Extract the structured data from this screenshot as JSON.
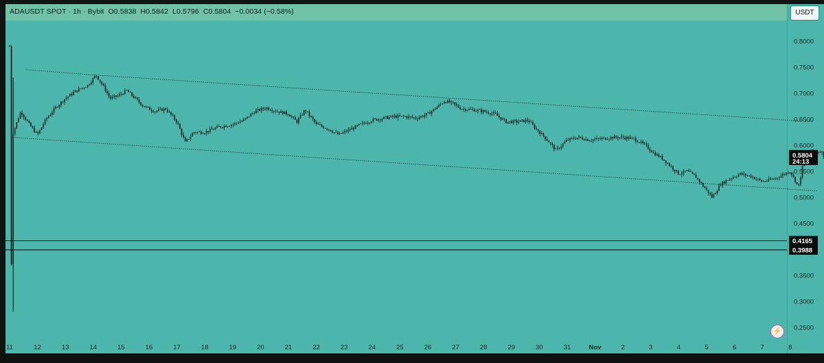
{
  "legend": {
    "symbol": "ADAUSDT SPOT",
    "sep1": "·",
    "interval": "1h",
    "sep2": "·",
    "exchange": "Bybit",
    "open": "O0.5838",
    "high": "H0.5842",
    "low": "L0.5796",
    "close": "C0.5804",
    "change": "−0.0034 (−0.58%)"
  },
  "currency_button": "USDT",
  "price_tag": {
    "price": "0.5804",
    "countdown": "24:13"
  },
  "level_tags": [
    "0.4165",
    "0.3988"
  ],
  "icons": {
    "lightning": "lightning-icon"
  },
  "colors": {
    "background": "#4db6ac",
    "candle": "#1b1f1e",
    "line": "#000000"
  },
  "chart_data": {
    "type": "candlestick",
    "yaxis_ticks": [
      "0.8000",
      "0.7500",
      "0.7000",
      "0.6500",
      "0.6000",
      "0.5500",
      "0.5000",
      "0.4500",
      "0.4000",
      "0.3500",
      "0.3000",
      "0.2500"
    ],
    "ylim": [
      0.235,
      0.82
    ],
    "xaxis_ticks": [
      "11",
      "12",
      "13",
      "14",
      "15",
      "16",
      "17",
      "18",
      "19",
      "20",
      "21",
      "22",
      "23",
      "24",
      "25",
      "26",
      "27",
      "28",
      "29",
      "30",
      "31",
      "Nov",
      "2",
      "3",
      "4",
      "5",
      "6",
      "7",
      "8"
    ],
    "price_path": [
      [
        0,
        0.79
      ],
      [
        0.05,
        0.28
      ],
      [
        0.1,
        0.62
      ],
      [
        0.4,
        0.665
      ],
      [
        0.7,
        0.64
      ],
      [
        1.0,
        0.62
      ],
      [
        1.3,
        0.65
      ],
      [
        1.7,
        0.675
      ],
      [
        2.0,
        0.69
      ],
      [
        2.4,
        0.705
      ],
      [
        2.8,
        0.715
      ],
      [
        3.1,
        0.735
      ],
      [
        3.4,
        0.71
      ],
      [
        3.6,
        0.69
      ],
      [
        3.9,
        0.695
      ],
      [
        4.2,
        0.705
      ],
      [
        4.5,
        0.69
      ],
      [
        4.8,
        0.675
      ],
      [
        5.2,
        0.665
      ],
      [
        5.6,
        0.67
      ],
      [
        6.0,
        0.645
      ],
      [
        6.3,
        0.605
      ],
      [
        6.6,
        0.625
      ],
      [
        7.0,
        0.625
      ],
      [
        7.5,
        0.635
      ],
      [
        8.0,
        0.64
      ],
      [
        8.4,
        0.648
      ],
      [
        8.8,
        0.665
      ],
      [
        9.2,
        0.672
      ],
      [
        9.6,
        0.665
      ],
      [
        10.0,
        0.66
      ],
      [
        10.3,
        0.645
      ],
      [
        10.6,
        0.668
      ],
      [
        11.0,
        0.64
      ],
      [
        11.4,
        0.632
      ],
      [
        11.8,
        0.62
      ],
      [
        12.2,
        0.63
      ],
      [
        12.6,
        0.64
      ],
      [
        13.0,
        0.648
      ],
      [
        13.4,
        0.652
      ],
      [
        13.8,
        0.655
      ],
      [
        14.2,
        0.655
      ],
      [
        14.6,
        0.652
      ],
      [
        15.0,
        0.66
      ],
      [
        15.3,
        0.672
      ],
      [
        15.6,
        0.685
      ],
      [
        15.9,
        0.68
      ],
      [
        16.2,
        0.67
      ],
      [
        16.6,
        0.668
      ],
      [
        17.0,
        0.665
      ],
      [
        17.4,
        0.66
      ],
      [
        17.8,
        0.645
      ],
      [
        18.2,
        0.645
      ],
      [
        18.6,
        0.648
      ],
      [
        18.9,
        0.63
      ],
      [
        19.2,
        0.615
      ],
      [
        19.6,
        0.59
      ],
      [
        20.0,
        0.61
      ],
      [
        20.4,
        0.615
      ],
      [
        20.8,
        0.61
      ],
      [
        21.2,
        0.612
      ],
      [
        21.6,
        0.615
      ],
      [
        22.0,
        0.615
      ],
      [
        22.4,
        0.612
      ],
      [
        22.8,
        0.6
      ],
      [
        23.1,
        0.585
      ],
      [
        23.4,
        0.575
      ],
      [
        23.7,
        0.56
      ],
      [
        24.0,
        0.545
      ],
      [
        24.3,
        0.55
      ],
      [
        24.6,
        0.54
      ],
      [
        24.9,
        0.52
      ],
      [
        25.2,
        0.5
      ],
      [
        25.5,
        0.525
      ],
      [
        25.8,
        0.535
      ],
      [
        26.2,
        0.545
      ],
      [
        26.6,
        0.54
      ],
      [
        27.0,
        0.53
      ],
      [
        27.4,
        0.535
      ],
      [
        27.8,
        0.545
      ],
      [
        28.0,
        0.55
      ],
      [
        28.3,
        0.52
      ],
      [
        28.5,
        0.575
      ],
      [
        28.7,
        0.59
      ],
      [
        28.9,
        0.585
      ],
      [
        29.1,
        0.59
      ],
      [
        29.2,
        0.58
      ]
    ],
    "channel_upper": [
      [
        0.6,
        0.745
      ],
      [
        3.0,
        0.735
      ],
      [
        28.8,
        0.645
      ]
    ],
    "channel_lower": [
      [
        0.1,
        0.615
      ],
      [
        29.0,
        0.512
      ]
    ],
    "horizontal_levels": [
      0.4165,
      0.3988
    ],
    "last_price": 0.5804,
    "grid": false
  }
}
